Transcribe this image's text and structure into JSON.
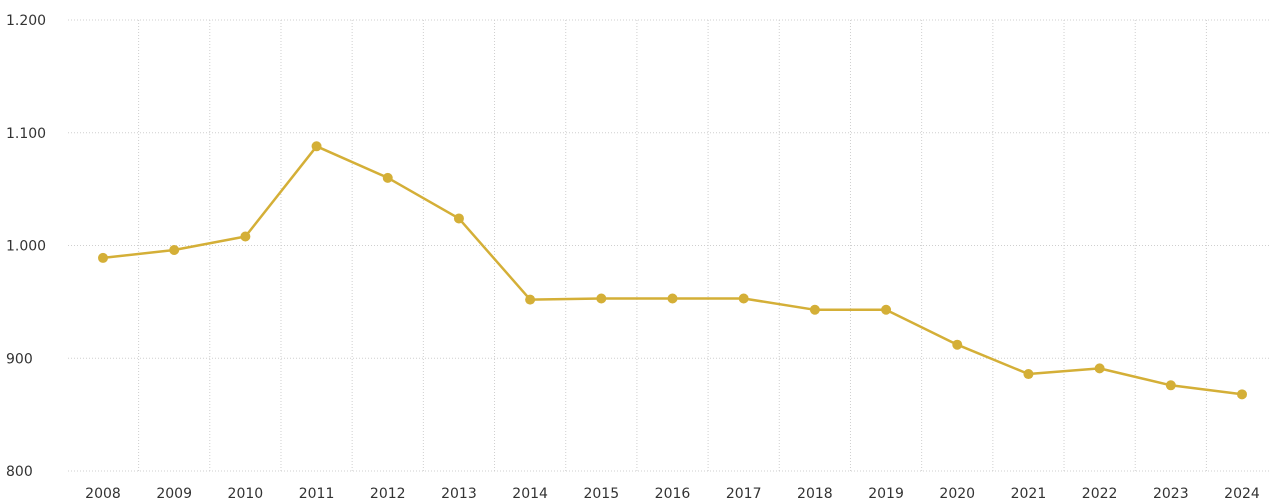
{
  "colors": {
    "series": "#D4AF37",
    "grid": "#cfcfcf",
    "text": "#333333"
  },
  "chart_data": {
    "type": "line",
    "title": "",
    "xlabel": "",
    "ylabel": "",
    "ylim": [
      800,
      1200
    ],
    "y_ticks": [
      800,
      900,
      1000,
      1100,
      1200
    ],
    "y_tick_labels": [
      "800",
      "900",
      "1.000",
      "1.100",
      "1.200"
    ],
    "grid": true,
    "legend": "none",
    "categories": [
      "2008",
      "2009",
      "2010",
      "2011",
      "2012",
      "2013",
      "2014",
      "2015",
      "2016",
      "2017",
      "2018",
      "2019",
      "2020",
      "2021",
      "2022",
      "2023",
      "2024"
    ],
    "series": [
      {
        "values": [
          989,
          996,
          1008,
          1088,
          1060,
          1024,
          952,
          953,
          953,
          953,
          943,
          943,
          912,
          886,
          891,
          876,
          868
        ]
      }
    ]
  }
}
